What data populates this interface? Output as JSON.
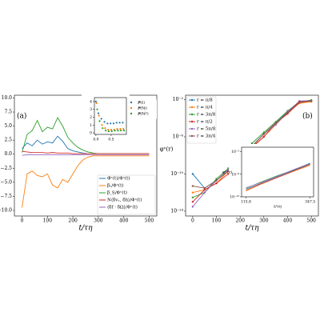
{
  "chart_data": [
    {
      "type": "line",
      "panel_label": "(a)",
      "xlabel": "t/τη",
      "x": [
        0,
        20,
        40,
        60,
        80,
        100,
        120,
        140,
        160,
        180,
        200,
        220,
        240,
        260,
        280,
        300,
        320,
        340,
        360,
        380,
        400,
        420,
        440,
        460,
        480,
        500
      ],
      "xlim": [
        -30,
        530
      ],
      "xticks": [
        0,
        100,
        200,
        300,
        400,
        500
      ],
      "ylim": [
        -11,
        10.5
      ],
      "yticks": [
        {
          "value": -10,
          "label": "−10.0"
        },
        {
          "value": -7.5,
          "label": "−7.5"
        },
        {
          "value": -5,
          "label": "−5.0"
        },
        {
          "value": -2.5,
          "label": "−2.5"
        },
        {
          "value": 0,
          "label": "0.0"
        },
        2.5,
        {
          "value": 5,
          "label": "5.0"
        },
        7.5,
        {
          "value": 10,
          "label": "10.0"
        }
      ],
      "legend": "lower right",
      "series": [
        {
          "name": "Φ̇ˣ(t)/Φˣ(t)",
          "color": "#1f77b4",
          "values": [
            1.0,
            2.0,
            1.5,
            2.5,
            1.8,
            2.2,
            2.0,
            3.2,
            2.3,
            1.0,
            0.6,
            0.4,
            0.2,
            0.1,
            0.1,
            0.1,
            0.1,
            0.1,
            0.1,
            0.1,
            0.1,
            0.1,
            0.1,
            0.1,
            0.1,
            0.1
          ]
        },
        {
          "name": "βᵥ/Φˣ(t)",
          "color": "#ff7f0e",
          "values": [
            -9.5,
            -3.5,
            -3.0,
            -3.8,
            -4.0,
            -3.5,
            -5.5,
            -6.0,
            -4.5,
            -5.0,
            -3.5,
            -2.0,
            -1.0,
            -0.5,
            -0.3,
            -0.3,
            -0.3,
            -0.3,
            -0.3,
            -0.3,
            -0.3,
            -0.3,
            -0.3,
            -0.3,
            -0.3,
            -0.3
          ]
        },
        {
          "name": "β_S/Φˣ(t)",
          "color": "#2ca02c",
          "values": [
            0.3,
            3.5,
            4.2,
            6.0,
            4.0,
            4.8,
            4.5,
            6.5,
            5.0,
            3.0,
            2.0,
            1.2,
            0.7,
            0.4,
            0.2,
            0.1,
            0.1,
            0.1,
            0.1,
            0.1,
            0.1,
            0.1,
            0.1,
            0.1,
            0.1,
            0.1
          ]
        },
        {
          "name": "N⟨δvₓ, δh⟩/Φˣ(t)",
          "color": "#d62728",
          "values": [
            0.5,
            0.4,
            0.3,
            0.3,
            0.3,
            0.2,
            0.3,
            0.2,
            0.2,
            0.2,
            0.1,
            0.1,
            0.1,
            0.1,
            0.1,
            0.1,
            0.1,
            0.1,
            0.1,
            0.1,
            0.1,
            0.1,
            0.1,
            0.1,
            0.1,
            0.1
          ]
        },
        {
          "name": "⟨δf · δΩ⟩/Φˣ(t)",
          "color": "#9467bd",
          "values": [
            -0.2,
            -0.1,
            -0.1,
            -0.1,
            -0.1,
            -0.1,
            -0.1,
            -0.1,
            -0.1,
            -0.1,
            -0.1,
            -0.1,
            -0.1,
            -0.1,
            -0.1,
            -0.1,
            -0.1,
            -0.1,
            -0.1,
            -0.1,
            -0.1,
            -0.1,
            -0.1,
            -0.1,
            -0.1,
            -0.1
          ]
        }
      ]
    },
    {
      "type": "scatter",
      "x": [
        0.02,
        0.1,
        0.2,
        0.3,
        0.4,
        0.5,
        0.6,
        0.7,
        0.8,
        0.9
      ],
      "xlim": [
        -0.05,
        1.0
      ],
      "xticks": [
        {
          "value": 0,
          "label": "0.0"
        },
        0.5
      ],
      "ylim": [
        -0.2,
        4.5
      ],
      "yticks": [
        0,
        1,
        2,
        3,
        4
      ],
      "legend": "right",
      "series": [
        {
          "name": "𝒫(ε̂)",
          "color": "#1f77b4",
          "values": [
            4.0,
            2.5,
            1.8,
            1.4,
            1.2,
            1.2,
            1.2,
            1.3,
            1.3,
            1.3
          ]
        },
        {
          "name": "𝒫(δε̂)",
          "color": "#ff7f0e",
          "values": [
            3.8,
            2.2,
            1.0,
            0.6,
            0.4,
            0.4,
            0.4,
            0.5,
            0.5,
            0.5
          ]
        },
        {
          "name": "𝒫(δε̂²)",
          "color": "#2ca02c",
          "values": [
            3.0,
            1.5,
            0.6,
            0.3,
            0.2,
            0.2,
            0.3,
            0.3,
            0.3,
            0.3
          ]
        }
      ]
    },
    {
      "type": "line",
      "panel_label": "(b)",
      "xlabel": "t/τη",
      "ylabel": "φˣ(r)",
      "log_y": true,
      "markers": true,
      "x": [
        0,
        50,
        100,
        150,
        200,
        250,
        300,
        350,
        400,
        450,
        500
      ],
      "xlim": [
        -30,
        530
      ],
      "xticks": [
        0,
        100,
        200,
        300,
        400,
        500
      ],
      "ylim": [
        3e-15,
        0.03
      ],
      "yticks": [
        {
          "value": 1e-14,
          "label": "10⁻¹⁴"
        },
        {
          "value": 1e-10,
          "label": "10⁻¹⁰"
        },
        {
          "value": 1e-06,
          "label": "10⁻⁶"
        },
        {
          "value": 0.01,
          "label": "10⁻²"
        }
      ],
      "legend": "upper left",
      "series": [
        {
          "name": "r = π/8",
          "color": "#1f77b4",
          "values": [
            1e-10,
            3e-12,
            2e-11,
            3e-10,
            6e-09,
            1e-07,
            2e-06,
            3e-05,
            0.0005,
            0.005,
            0.008
          ]
        },
        {
          "name": "r = π/4",
          "color": "#ff7f0e",
          "values": [
            1e-12,
            2e-12,
            1e-11,
            2e-10,
            5e-09,
            8e-08,
            1e-06,
            2e-05,
            0.0004,
            0.004,
            0.006
          ]
        },
        {
          "name": "r = 3π/8",
          "color": "#2ca02c",
          "values": [
            3e-13,
            1e-12,
            3e-11,
            4e-10,
            8e-09,
            2e-07,
            3e-06,
            4e-05,
            0.0006,
            0.006,
            0.009
          ]
        },
        {
          "name": "r = π/2",
          "color": "#d62728",
          "values": [
            1e-13,
            2e-12,
            1e-11,
            1e-10,
            4e-09,
            7e-08,
            1e-06,
            3e-05,
            0.0003,
            0.005,
            0.007
          ]
        },
        {
          "name": "r = 5π/8",
          "color": "#9467bd",
          "values": [
            3e-14,
            1e-12,
            2e-11,
            3e-10,
            6e-09,
            1e-07,
            2e-06,
            2e-05,
            0.0005,
            0.007,
            0.008
          ]
        },
        {
          "name": "r = 3π/4",
          "color": "#8c564b",
          "values": [
            5e-12,
            3e-12,
            2e-11,
            2e-10,
            5e-09,
            9e-08,
            2e-06,
            3e-05,
            0.0004,
            0.006,
            0.007
          ]
        }
      ]
    },
    {
      "type": "line",
      "xlabel": "t/τη",
      "ylabel": "φˣ(z)",
      "log_y": true,
      "x": [
        115.8,
        170,
        230,
        290,
        347.5
      ],
      "xlim": [
        100,
        360
      ],
      "xticks": [
        115.8,
        347.5
      ],
      "ylim": [
        1e-13,
        0.01
      ],
      "yticks": [
        {
          "value": 1e-13,
          "label": "10⁻¹³"
        },
        {
          "value": 1e-08,
          "label": "10⁻⁸"
        },
        {
          "value": 0.001,
          "label": "10⁻³"
        }
      ],
      "series": [
        {
          "color": "#1f77b4",
          "values": [
            5e-12,
            1e-10,
            3e-09,
            8e-08,
            2e-06
          ]
        },
        {
          "color": "#ff7f0e",
          "values": [
            2e-12,
            6e-11,
            2e-09,
            5e-08,
            1e-06
          ]
        },
        {
          "color": "#2ca02c",
          "values": [
            8e-12,
            2e-10,
            5e-09,
            1e-07,
            3e-06
          ]
        },
        {
          "color": "#d62728",
          "values": [
            3e-12,
            8e-11,
            2e-09,
            6e-08,
            1.5e-06
          ]
        },
        {
          "color": "#9467bd",
          "values": [
            1e-11,
            1.5e-10,
            4e-09,
            1.2e-07,
            2.5e-06
          ]
        }
      ]
    }
  ]
}
